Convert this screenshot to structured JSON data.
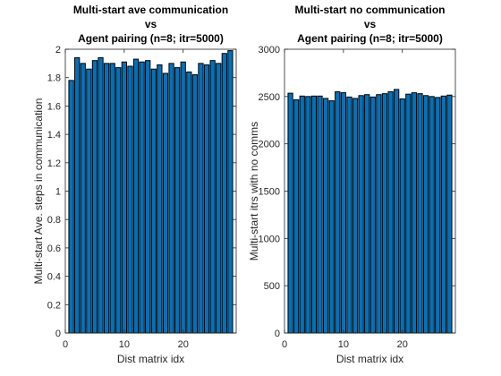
{
  "chart_data": [
    {
      "type": "bar",
      "title": [
        "Multi-start ave communication",
        "vs",
        "Agent pairing (n=8; itr=5000)"
      ],
      "xlabel": "Dist matrix idx",
      "ylabel": "Multi-start Ave. steps in communication",
      "x": [
        1,
        2,
        3,
        4,
        5,
        6,
        7,
        8,
        9,
        10,
        11,
        12,
        13,
        14,
        15,
        16,
        17,
        18,
        19,
        20,
        21,
        22,
        23,
        24,
        25,
        26,
        27,
        28
      ],
      "values": [
        1.78,
        1.94,
        1.9,
        1.86,
        1.92,
        1.94,
        1.9,
        1.9,
        1.87,
        1.91,
        1.88,
        1.93,
        1.91,
        1.92,
        1.86,
        1.89,
        1.83,
        1.9,
        1.87,
        1.91,
        1.84,
        1.82,
        1.9,
        1.89,
        1.92,
        1.9,
        1.97,
        1.99
      ],
      "xlim": [
        0,
        29
      ],
      "ylim": [
        0,
        2
      ],
      "xticks": [
        0,
        10,
        20
      ],
      "xtick_labels": [
        "0",
        "10",
        "20"
      ],
      "yticks": [
        0,
        0.2,
        0.4,
        0.6,
        0.8,
        1,
        1.2,
        1.4,
        1.6,
        1.8,
        2
      ],
      "ytick_labels": [
        "0",
        "0.2",
        "0.4",
        "0.6",
        "0.8",
        "1",
        "1.2",
        "1.4",
        "1.6",
        "1.8",
        "2"
      ],
      "grid": false,
      "bar_color": "#0072BD"
    },
    {
      "type": "bar",
      "title": [
        "Multi-start no communication",
        "vs",
        "Agent pairing (n=8; itr=5000)"
      ],
      "xlabel": "Dist matrix idx",
      "ylabel": "Multi-start itrs with no comms",
      "x": [
        1,
        2,
        3,
        4,
        5,
        6,
        7,
        8,
        9,
        10,
        11,
        12,
        13,
        14,
        15,
        16,
        17,
        18,
        19,
        20,
        21,
        22,
        23,
        24,
        25,
        26,
        27,
        28
      ],
      "values": [
        2535,
        2465,
        2505,
        2500,
        2505,
        2505,
        2480,
        2455,
        2550,
        2540,
        2495,
        2480,
        2510,
        2520,
        2495,
        2520,
        2530,
        2550,
        2575,
        2475,
        2525,
        2540,
        2530,
        2510,
        2500,
        2490,
        2505,
        2515
      ],
      "xlim": [
        0,
        29
      ],
      "ylim": [
        0,
        3000
      ],
      "xticks": [
        0,
        10,
        20
      ],
      "xtick_labels": [
        "0",
        "10",
        "20"
      ],
      "yticks": [
        0,
        500,
        1000,
        1500,
        2000,
        2500,
        3000
      ],
      "ytick_labels": [
        "0",
        "500",
        "1000",
        "1500",
        "2000",
        "2500",
        "3000"
      ],
      "grid": false,
      "bar_color": "#0072BD"
    }
  ]
}
